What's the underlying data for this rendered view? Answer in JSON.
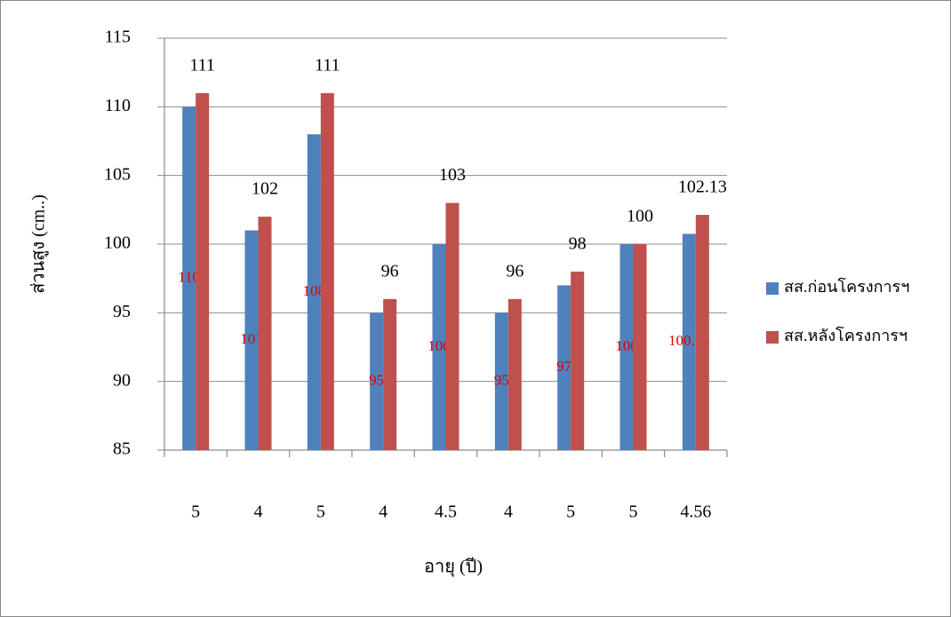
{
  "chart_data": {
    "type": "bar",
    "x_label": "อายุ (ปี)",
    "y_label": "ส่วนสูง (cm..)",
    "categories": [
      "5",
      "4",
      "5",
      "4",
      "4.5",
      "4",
      "5",
      "5",
      "4.56"
    ],
    "series": [
      {
        "name": "สส.ก่อนโครงการฯ",
        "color": "#4f81bd",
        "values": [
          110,
          101,
          108,
          95,
          100,
          95,
          97,
          100,
          100.75
        ]
      },
      {
        "name": "สส.หลังโครงการฯ",
        "color": "#c0504d",
        "values": [
          111,
          102,
          111,
          96,
          103,
          96,
          98,
          100,
          102.13
        ]
      }
    ],
    "ylim": [
      85,
      115
    ],
    "yticks": [
      85,
      90,
      95,
      100,
      105,
      110,
      115
    ],
    "grid": true,
    "legend": "right"
  }
}
